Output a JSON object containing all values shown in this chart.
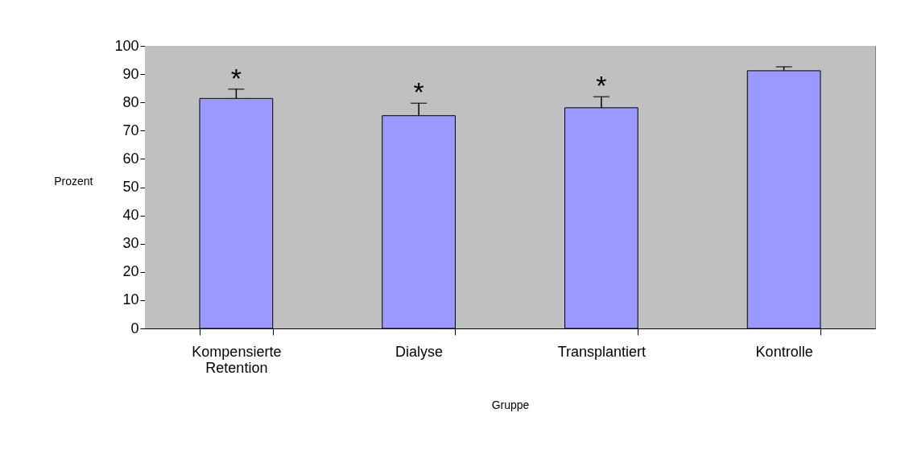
{
  "chart_data": {
    "type": "bar",
    "xlabel": "Gruppe",
    "ylabel": "Prozent",
    "categories": [
      "Kompensierte Retention",
      "Dialyse",
      "Transplantiert",
      "Kontrolle"
    ],
    "values": [
      81.4,
      75.3,
      78.1,
      91.2
    ],
    "color": "#9999ff",
    "errors": [
      [
        81.4,
        84.7
      ],
      [
        75.3,
        79.7
      ],
      [
        78.1,
        82.0
      ],
      [
        91.2,
        92.6
      ]
    ],
    "ylim": [
      0,
      100
    ],
    "yticks": [
      0,
      10,
      20,
      30,
      40,
      50,
      60,
      70,
      80,
      90,
      100
    ],
    "grid": false,
    "annotations": [
      {
        "text": "*",
        "x": "Kompensierte Retention",
        "y": 84.7
      },
      {
        "text": "*",
        "x": "Dialyse",
        "y": 79.7
      },
      {
        "text": "*",
        "x": "Transplantiert",
        "y": 82.0
      }
    ]
  }
}
